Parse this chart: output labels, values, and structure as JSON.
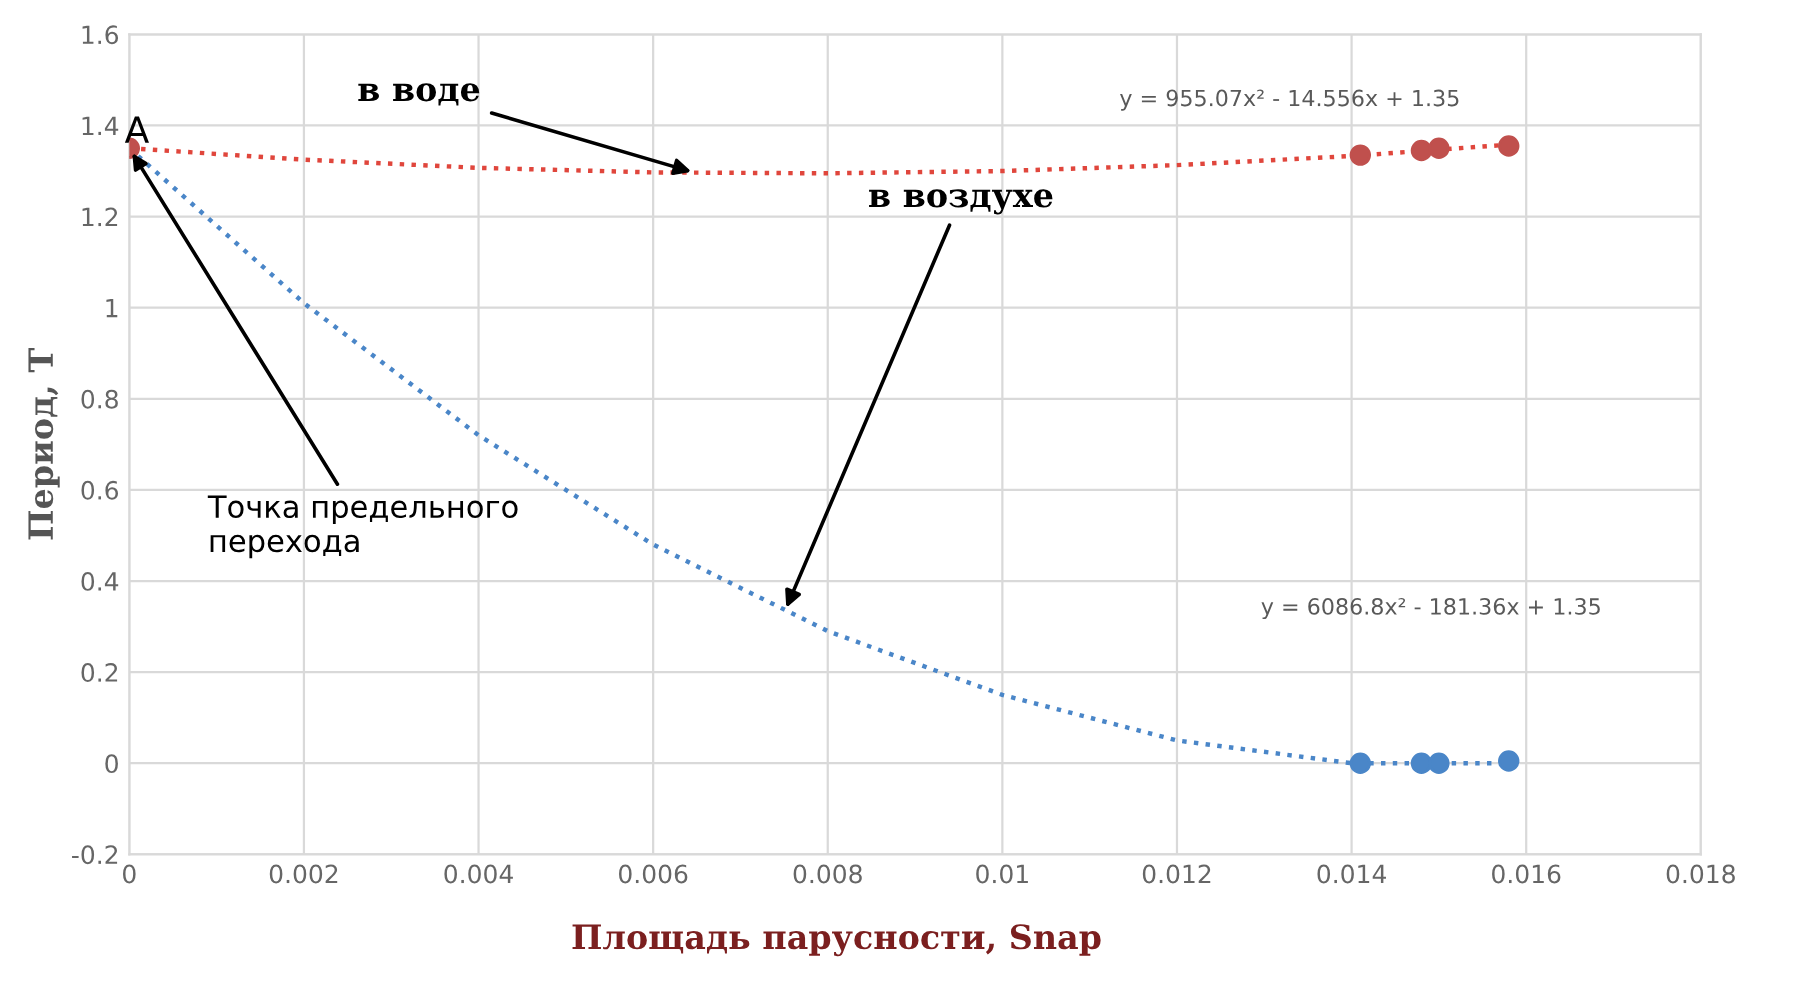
{
  "chart_data": {
    "type": "scatter",
    "xlabel": "Площадь парусности, Snap",
    "ylabel": "Период, T",
    "xlim": [
      0,
      0.018
    ],
    "xticks": [
      0,
      0.002,
      0.004,
      0.006,
      0.008,
      0.01,
      0.012,
      0.014,
      0.016,
      0.018
    ],
    "ylim": [
      -0.2,
      1.6
    ],
    "yticks": [
      -0.2,
      0,
      0.2,
      0.4,
      0.6,
      0.8,
      1,
      1.2,
      1.4,
      1.6
    ],
    "grid": true,
    "series": [
      {
        "marker": "circle",
        "color": "#c0504d",
        "x": [
          0,
          0.0141,
          0.0148,
          0.015,
          0.0158
        ],
        "values": [
          1.35,
          1.335,
          1.345,
          1.35,
          1.355
        ]
      },
      {
        "marker": "circle",
        "color": "#4a86c8",
        "x": [
          0.0141,
          0.0148,
          0.015,
          0.0158
        ],
        "values": [
          0,
          0,
          0,
          0.005
        ]
      },
      {
        "type": "line",
        "line_style": "dotted",
        "marker": "none",
        "color": "#e0463c",
        "x": [
          0,
          0.002,
          0.004,
          0.006,
          0.008,
          0.01,
          0.012,
          0.014,
          0.0158
        ],
        "values": [
          1.35,
          1.325,
          1.307,
          1.297,
          1.295,
          1.3,
          1.313,
          1.333,
          1.358
        ]
      },
      {
        "type": "line",
        "line_style": "dotted",
        "marker": "none",
        "color": "#4a86c8",
        "x": [
          0,
          0.002,
          0.004,
          0.006,
          0.008,
          0.01,
          0.012,
          0.014,
          0.0158
        ],
        "values": [
          1.35,
          1.01,
          0.72,
          0.48,
          0.29,
          0.15,
          0.05,
          0.0,
          0.0
        ]
      }
    ],
    "annotations": [
      {
        "text": "в воде",
        "x": 0.0065,
        "y": 1.295
      },
      {
        "text": "в воздухе",
        "x": 0.0075,
        "y": 0.33
      },
      {
        "text": "Точка предельного\nперехода",
        "x": 0,
        "y": 1.35
      },
      "A",
      "y = 955.07x² - 14.556x + 1.35",
      "y = 6086.8x² - 181.36x + 1.35"
    ]
  }
}
